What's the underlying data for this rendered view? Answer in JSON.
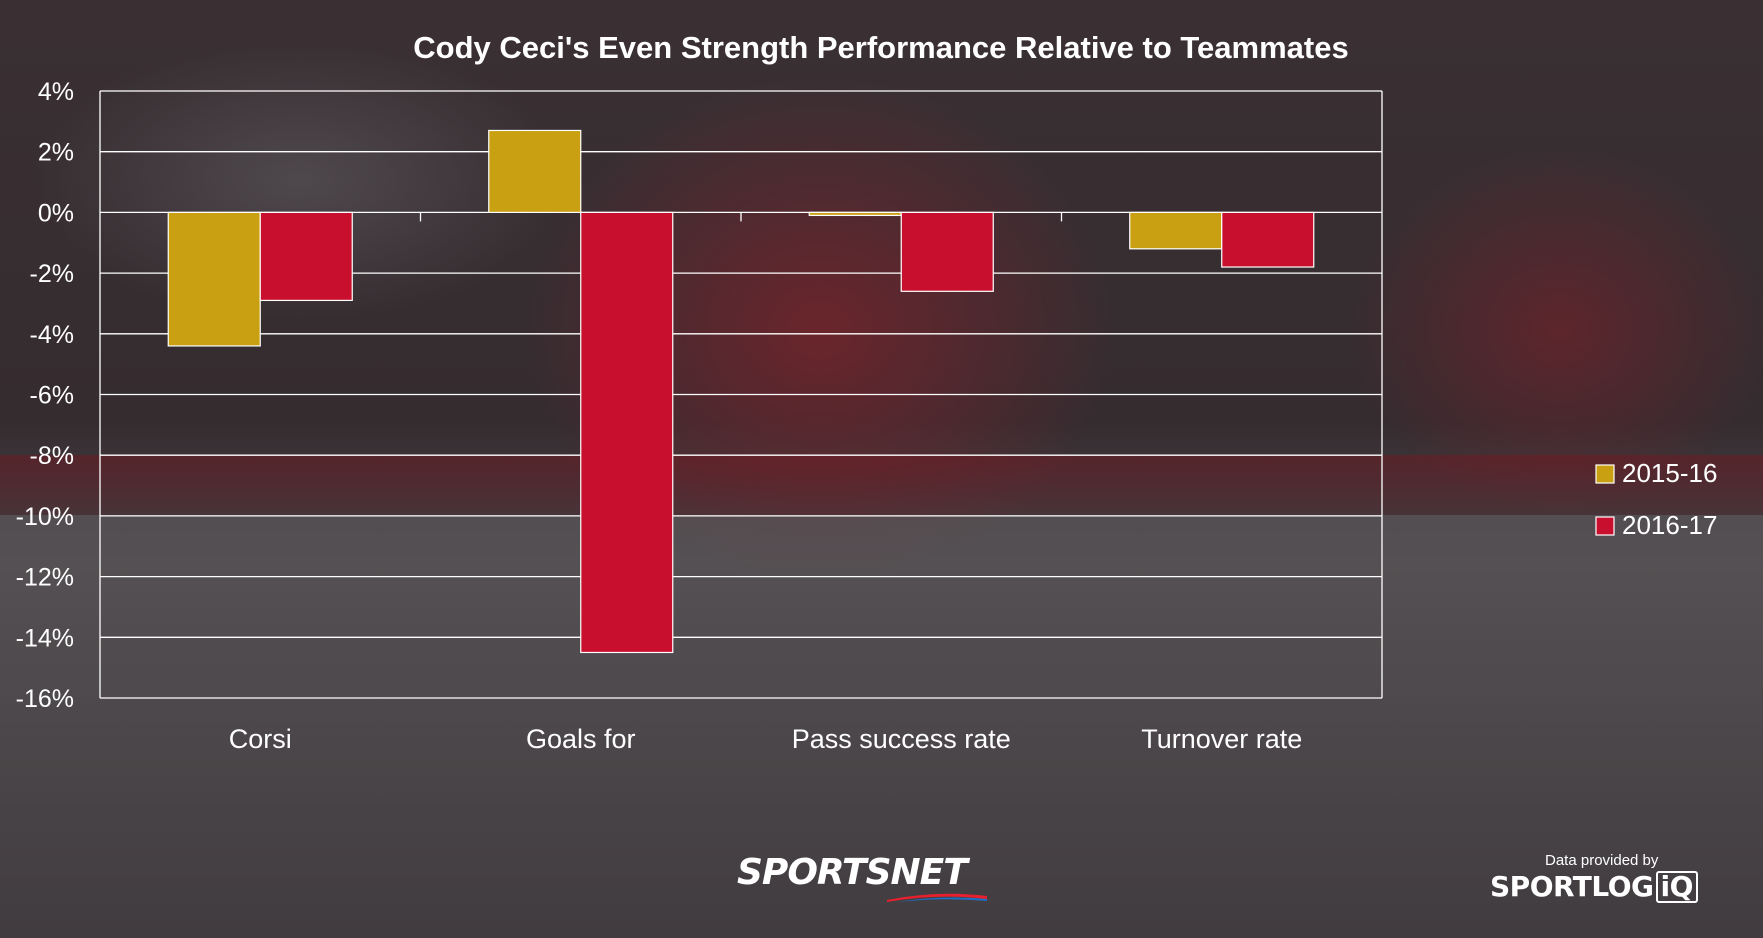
{
  "chart_data": {
    "type": "bar",
    "title": "Cody Ceci's Even Strength Performance Relative to Teammates",
    "categories": [
      "Corsi",
      "Goals for",
      "Pass success rate",
      "Turnover rate"
    ],
    "series": [
      {
        "name": "2015-16",
        "values": [
          -4.4,
          2.7,
          -0.1,
          -1.2
        ],
        "color": "#c9a012"
      },
      {
        "name": "2016-17",
        "values": [
          -2.9,
          -14.5,
          -2.6,
          -1.8
        ],
        "color": "#c8102e"
      }
    ],
    "ylim": [
      -16,
      4
    ],
    "yticks": [
      4,
      2,
      0,
      -2,
      -4,
      -6,
      -8,
      -10,
      -12,
      -14,
      -16
    ],
    "ytick_labels": [
      "4%",
      "2%",
      "0%",
      "-2%",
      "-4%",
      "-6%",
      "-8%",
      "-10%",
      "-12%",
      "-14%",
      "-16%"
    ],
    "grid": true,
    "legend_position": "right"
  },
  "branding": {
    "sportsnet": "SPORTSNET",
    "provided_by": "Data provided by",
    "sportlogiq_main": "SPORTLOG",
    "sportlogiq_iq": "iQ"
  }
}
